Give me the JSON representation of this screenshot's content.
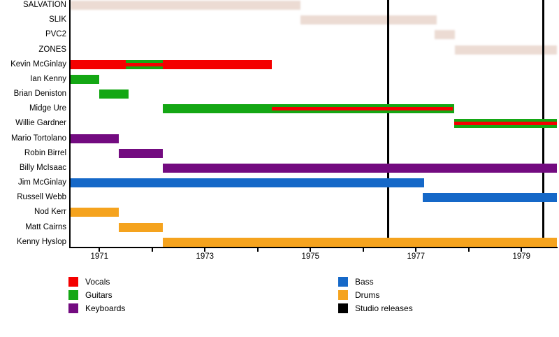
{
  "chart_data": {
    "type": "bar",
    "subtype": "membership-timeline",
    "title": "",
    "xlabel": "",
    "ylabel": "",
    "x_axis": {
      "domain_start": 1970.44,
      "domain_end": 1979.67,
      "tick_years": [
        1971,
        1972,
        1973,
        1974,
        1975,
        1976,
        1977,
        1978,
        1979
      ],
      "labeled_ticks": [
        "1971",
        "1973",
        "1975",
        "1977",
        "1979"
      ]
    },
    "colors": {
      "vocals": "#f40000",
      "guitars": "#14a714",
      "keyboards": "#730b80",
      "bass": "#1568c8",
      "drums": "#f5a31e",
      "band": "#ecdbd3",
      "studio": "#000000",
      "axis": "#000000"
    },
    "rows": [
      {
        "label": "SALVATION",
        "kind": "band",
        "bars": [
          {
            "start": 1970.45,
            "end": 1974.81,
            "role": "band"
          }
        ]
      },
      {
        "label": "SLIK",
        "kind": "band",
        "bars": [
          {
            "start": 1974.81,
            "end": 1977.4,
            "role": "band"
          }
        ]
      },
      {
        "label": "PVC2",
        "kind": "band",
        "bars": [
          {
            "start": 1977.36,
            "end": 1977.74,
            "role": "band"
          }
        ]
      },
      {
        "label": "ZONES",
        "kind": "band",
        "bars": [
          {
            "start": 1977.74,
            "end": 1979.67,
            "role": "band"
          }
        ]
      },
      {
        "label": "Kevin McGinlay",
        "kind": "member",
        "bars": [
          {
            "start": 1970.45,
            "end": 1974.27,
            "role": "vocals"
          },
          {
            "start": 1971.5,
            "end": 1972.2,
            "role": "guitars"
          },
          {
            "start": 1971.5,
            "end": 1972.2,
            "role": "vocals",
            "thin": true
          }
        ]
      },
      {
        "label": "Ian Kenny",
        "kind": "member",
        "bars": [
          {
            "start": 1970.45,
            "end": 1971.0,
            "role": "guitars"
          }
        ]
      },
      {
        "label": "Brian Deniston",
        "kind": "member",
        "bars": [
          {
            "start": 1971.0,
            "end": 1971.55,
            "role": "guitars"
          }
        ]
      },
      {
        "label": "Midge Ure",
        "kind": "member",
        "bars": [
          {
            "start": 1972.2,
            "end": 1977.73,
            "role": "guitars"
          },
          {
            "start": 1974.27,
            "end": 1977.7,
            "role": "vocals",
            "thin": true
          }
        ]
      },
      {
        "label": "Willie Gardner",
        "kind": "member",
        "bars": [
          {
            "start": 1977.72,
            "end": 1979.67,
            "role": "guitars"
          },
          {
            "start": 1977.72,
            "end": 1979.67,
            "role": "vocals",
            "thin": true
          }
        ]
      },
      {
        "label": "Mario Tortolano",
        "kind": "member",
        "bars": [
          {
            "start": 1970.45,
            "end": 1971.37,
            "role": "keyboards"
          }
        ]
      },
      {
        "label": "Robin Birrel",
        "kind": "member",
        "bars": [
          {
            "start": 1971.37,
            "end": 1972.2,
            "role": "keyboards"
          }
        ]
      },
      {
        "label": "Billy McIsaac",
        "kind": "member",
        "bars": [
          {
            "start": 1972.2,
            "end": 1979.67,
            "role": "keyboards"
          }
        ]
      },
      {
        "label": "Jim McGinlay",
        "kind": "member",
        "bars": [
          {
            "start": 1970.45,
            "end": 1977.15,
            "role": "bass"
          }
        ]
      },
      {
        "label": "Russell Webb",
        "kind": "member",
        "bars": [
          {
            "start": 1977.13,
            "end": 1979.67,
            "role": "bass"
          }
        ]
      },
      {
        "label": "Nod Kerr",
        "kind": "member",
        "bars": [
          {
            "start": 1970.45,
            "end": 1971.37,
            "role": "drums"
          }
        ]
      },
      {
        "label": "Matt Cairns",
        "kind": "member",
        "bars": [
          {
            "start": 1971.37,
            "end": 1972.2,
            "role": "drums"
          }
        ]
      },
      {
        "label": "Kenny Hyslop",
        "kind": "member",
        "bars": [
          {
            "start": 1972.2,
            "end": 1979.67,
            "role": "drums"
          }
        ]
      }
    ],
    "studio_releases": [
      1976.47,
      1979.41
    ],
    "legend": {
      "left_column": [
        {
          "label": "Vocals",
          "role": "vocals"
        },
        {
          "label": "Guitars",
          "role": "guitars"
        },
        {
          "label": "Keyboards",
          "role": "keyboards"
        }
      ],
      "right_column": [
        {
          "label": "Bass",
          "role": "bass"
        },
        {
          "label": "Drums",
          "role": "drums"
        },
        {
          "label": "Studio releases",
          "role": "studio"
        }
      ]
    }
  }
}
